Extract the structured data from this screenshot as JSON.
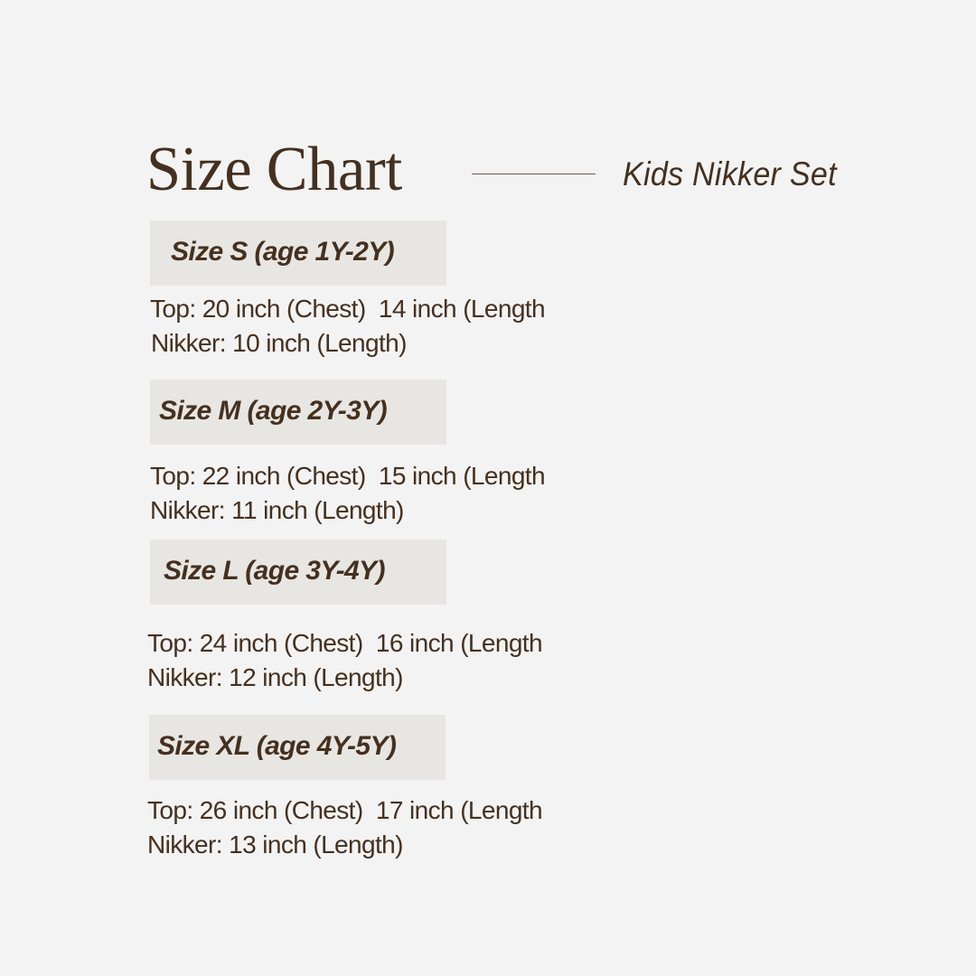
{
  "header": {
    "title": "Size Chart",
    "subtitle": "Kids Nikker Set"
  },
  "colors": {
    "background": "#f3f3f3",
    "label_box": "#e8e6e2",
    "text": "#45301f"
  },
  "sizes": [
    {
      "label": "Size S (age 1Y-2Y)",
      "top": "Top: 20 inch (Chest)  14 inch (Length",
      "nikker": "Nikker: 10 inch (Length)"
    },
    {
      "label": "Size M (age 2Y-3Y)",
      "top": "Top: 22 inch (Chest)  15 inch (Length",
      "nikker": "Nikker: 11 inch (Length)"
    },
    {
      "label": "Size L (age 3Y-4Y)",
      "top": "Top: 24 inch (Chest)  16 inch (Length",
      "nikker": "Nikker: 12 inch (Length)"
    },
    {
      "label": "Size XL (age 4Y-5Y)",
      "top": "Top: 26 inch (Chest)  17 inch (Length",
      "nikker": "Nikker: 13 inch (Length)"
    }
  ]
}
